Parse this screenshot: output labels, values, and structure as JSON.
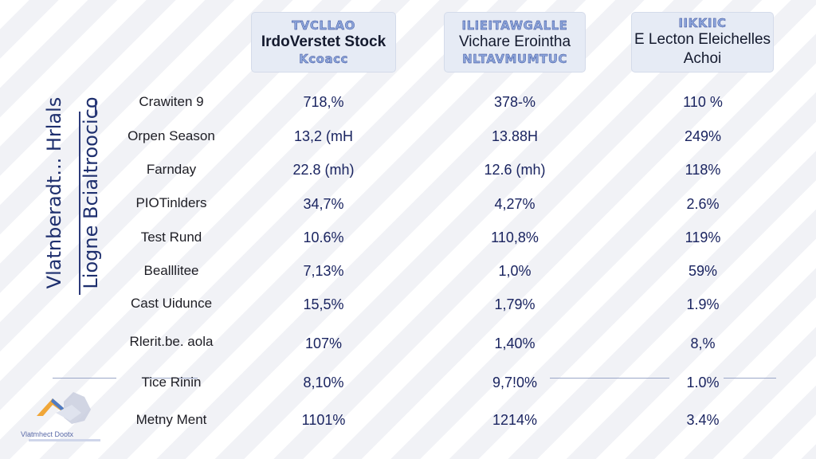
{
  "chart_data": {
    "type": "table",
    "y_axis_titles": [
      "Vlatnberadt... Hrlals",
      "Liogne Bcialtroocico"
    ],
    "columns": [
      {
        "top": "TVCLLAO",
        "main": "IrdoVerstet Stock",
        "bottom": "Kcoacc",
        "bold": true
      },
      {
        "top": "ILIEITAWGALLE",
        "main": "Vichare Erointha",
        "bottom": "NLTAVMUMTUC",
        "bold": false
      },
      {
        "top": "IIKKIIC",
        "main": "E Lecton Eleichelles Achoi",
        "bottom": "",
        "bold": false
      }
    ],
    "rows": [
      {
        "label": "Crawiten 9",
        "values": [
          "718,%",
          "378-%",
          "110 %"
        ]
      },
      {
        "label": "Orpen Season",
        "values": [
          "13,2 (mH",
          "13.88H",
          "249%"
        ]
      },
      {
        "label": "Farnday",
        "values": [
          "22.8 (mh)",
          "12.6 (mh)",
          "118%"
        ]
      },
      {
        "label": "PIOTinlders",
        "values": [
          "34,7%",
          "4,27%",
          "2.6%"
        ]
      },
      {
        "label": "Test Rund",
        "values": [
          "10.6%",
          "110,8%",
          "119%"
        ]
      },
      {
        "label": "Bealllitee",
        "values": [
          "7,13%",
          "1,0%",
          "59%"
        ]
      },
      {
        "label": "Cast Uidunce",
        "values": [
          "15,5%",
          "1,79%",
          "1.9%"
        ]
      },
      {
        "label": "Rlerit.be. aola",
        "values": [
          "107%",
          "1,40%",
          "8,%"
        ]
      },
      {
        "label": "Tice Rinin",
        "values": [
          "8,10%",
          "9,7!0%",
          "1.0%"
        ]
      },
      {
        "label": "Metny Ment",
        "values": [
          "1101%",
          "1214%",
          "3.4%"
        ]
      }
    ]
  },
  "logo": {
    "text": "Vlatmhect Dootx"
  }
}
